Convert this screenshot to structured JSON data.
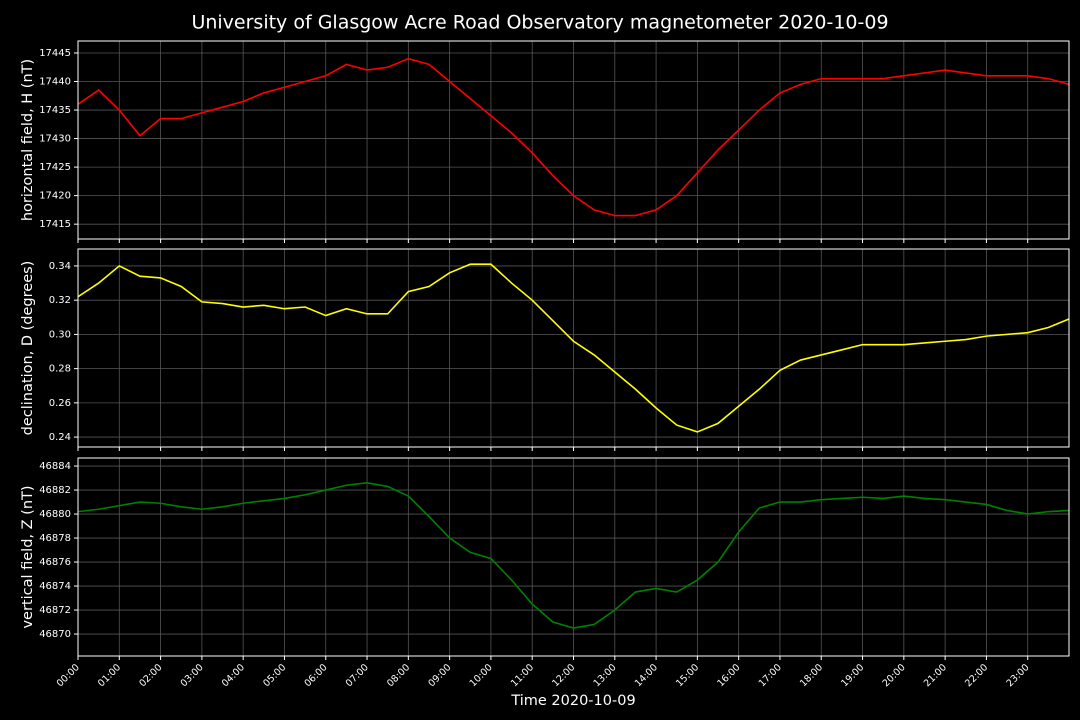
{
  "title": "University of Glasgow Acre Road Observatory magnetometer 2020-10-09",
  "chart_data": [
    {
      "type": "line",
      "ylabel": "horizontal field, H (nT)",
      "color": "#ff0000",
      "grid": true,
      "xlim": [
        0,
        24
      ],
      "ylim": [
        17412.4,
        17447.1
      ],
      "yticks": [
        17415,
        17420,
        17425,
        17430,
        17435,
        17440,
        17445
      ],
      "x": [
        0,
        0.5,
        1,
        1.5,
        2,
        2.5,
        3,
        3.5,
        4,
        4.5,
        5,
        5.5,
        6,
        6.5,
        7,
        7.5,
        8,
        8.5,
        9,
        9.5,
        10,
        10.5,
        11,
        11.5,
        12,
        12.5,
        13,
        13.5,
        14,
        14.5,
        15,
        15.5,
        16,
        16.5,
        17,
        17.5,
        18,
        18.5,
        19,
        19.5,
        20,
        20.5,
        21,
        21.5,
        22,
        22.5,
        23,
        23.5,
        24
      ],
      "values": [
        17436,
        17438.5,
        17435,
        17430.5,
        17433.5,
        17433.5,
        17434.5,
        17435.5,
        17436.5,
        17438,
        17439,
        17440,
        17441,
        17443,
        17442,
        17442.5,
        17444,
        17443,
        17440,
        17437,
        17434,
        17431,
        17427.5,
        17423.5,
        17420,
        17417.5,
        17416.5,
        17416.5,
        17417.5,
        17420,
        17424,
        17428,
        17431.5,
        17435,
        17438,
        17439.5,
        17440.5,
        17440.5,
        17440.5,
        17440.5,
        17441,
        17441.5,
        17442,
        17441.5,
        17441,
        17441,
        17441,
        17440.5,
        17439.5
      ]
    },
    {
      "type": "line",
      "ylabel": "declination, D (degrees)",
      "color": "#ffff00",
      "grid": true,
      "xlim": [
        0,
        24
      ],
      "ylim": [
        0.2342,
        0.3499
      ],
      "yticks": [
        0.24,
        0.26,
        0.28,
        {
          "value": 0.3,
          "label": "0.30"
        },
        0.32,
        0.34
      ],
      "x": [
        0,
        0.5,
        1,
        1.5,
        2,
        2.5,
        3,
        3.5,
        4,
        4.5,
        5,
        5.5,
        6,
        6.5,
        7,
        7.5,
        8,
        8.5,
        9,
        9.5,
        10,
        10.5,
        11,
        11.5,
        12,
        12.5,
        13,
        13.5,
        14,
        14.5,
        15,
        15.5,
        16,
        16.5,
        17,
        17.5,
        18,
        18.5,
        19,
        19.5,
        20,
        20.5,
        21,
        21.5,
        22,
        22.5,
        23,
        23.5,
        24
      ],
      "values": [
        0.322,
        0.33,
        0.34,
        0.334,
        0.333,
        0.328,
        0.319,
        0.318,
        0.316,
        0.317,
        0.315,
        0.316,
        0.311,
        0.315,
        0.312,
        0.312,
        0.325,
        0.328,
        0.336,
        0.341,
        0.341,
        0.33,
        0.32,
        0.308,
        0.296,
        0.288,
        0.278,
        0.268,
        0.257,
        0.247,
        0.243,
        0.248,
        0.258,
        0.268,
        0.279,
        0.285,
        0.288,
        0.291,
        0.294,
        0.294,
        0.294,
        0.295,
        0.296,
        0.297,
        0.299,
        0.3,
        0.301,
        0.304,
        0.309
      ]
    },
    {
      "type": "line",
      "ylabel": "vertical field, Z (nT)",
      "xlabel": "Time 2020-10-09",
      "color": "#008000",
      "grid": true,
      "xlim": [
        0,
        24
      ],
      "ylim": [
        46868.17,
        46884.67
      ],
      "yticks": [
        46870,
        46872,
        46874,
        46876,
        46878,
        46880,
        46882,
        46884
      ],
      "xticks": [
        {
          "value": 0,
          "label": "00:00"
        },
        {
          "value": 1,
          "label": "01:00"
        },
        {
          "value": 2,
          "label": "02:00"
        },
        {
          "value": 3,
          "label": "03:00"
        },
        {
          "value": 4,
          "label": "04:00"
        },
        {
          "value": 5,
          "label": "05:00"
        },
        {
          "value": 6,
          "label": "06:00"
        },
        {
          "value": 7,
          "label": "07:00"
        },
        {
          "value": 8,
          "label": "08:00"
        },
        {
          "value": 9,
          "label": "09:00"
        },
        {
          "value": 10,
          "label": "10:00"
        },
        {
          "value": 11,
          "label": "11:00"
        },
        {
          "value": 12,
          "label": "12:00"
        },
        {
          "value": 13,
          "label": "13:00"
        },
        {
          "value": 14,
          "label": "14:00"
        },
        {
          "value": 15,
          "label": "15:00"
        },
        {
          "value": 16,
          "label": "16:00"
        },
        {
          "value": 17,
          "label": "17:00"
        },
        {
          "value": 18,
          "label": "18:00"
        },
        {
          "value": 19,
          "label": "19:00"
        },
        {
          "value": 20,
          "label": "20:00"
        },
        {
          "value": 21,
          "label": "21:00"
        },
        {
          "value": 22,
          "label": "22:00"
        },
        {
          "value": 23,
          "label": "23:00"
        }
      ],
      "x": [
        0,
        0.5,
        1,
        1.5,
        2,
        2.5,
        3,
        3.5,
        4,
        4.5,
        5,
        5.5,
        6,
        6.5,
        7,
        7.5,
        8,
        8.5,
        9,
        9.5,
        10,
        10.5,
        11,
        11.5,
        12,
        12.5,
        13,
        13.5,
        14,
        14.5,
        15,
        15.5,
        16,
        16.5,
        17,
        17.5,
        18,
        18.5,
        19,
        19.5,
        20,
        20.5,
        21,
        21.5,
        22,
        22.5,
        23,
        23.5,
        24
      ],
      "values": [
        46880.2,
        46880.4,
        46880.7,
        46881,
        46880.9,
        46880.6,
        46880.4,
        46880.6,
        46880.9,
        46881.1,
        46881.3,
        46881.6,
        46882,
        46882.4,
        46882.6,
        46882.3,
        46881.5,
        46879.8,
        46878,
        46876.8,
        46876.3,
        46874.5,
        46872.5,
        46871,
        46870.5,
        46870.8,
        46872,
        46873.5,
        46873.8,
        46873.5,
        46874.5,
        46876,
        46878.5,
        46880.5,
        46881,
        46881,
        46881.2,
        46881.3,
        46881.4,
        46881.3,
        46881.5,
        46881.3,
        46881.2,
        46881,
        46880.8,
        46880.3,
        46880,
        46880.2,
        46880.3
      ]
    }
  ]
}
